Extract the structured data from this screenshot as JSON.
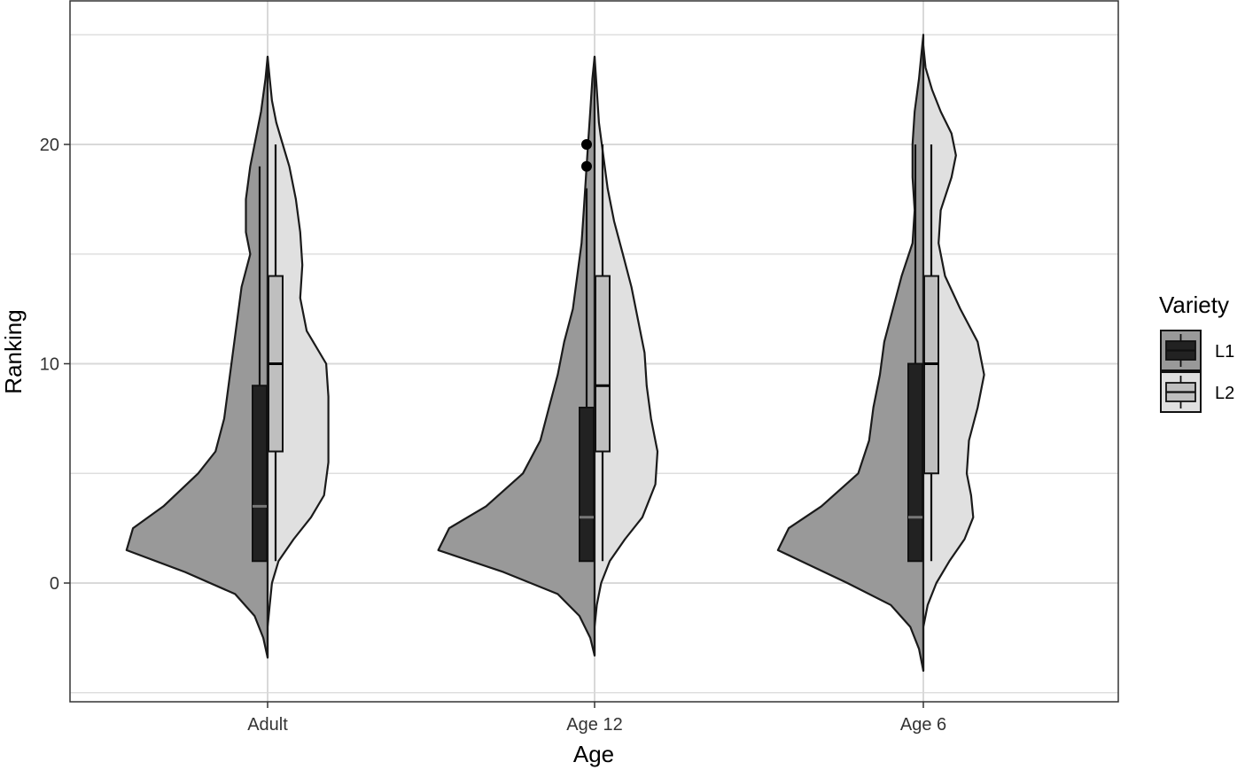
{
  "chart_data": {
    "type": "split-violin",
    "xlabel": "Age",
    "ylabel": "Ranking",
    "categories": [
      "Adult",
      "Age 12",
      "Age 6"
    ],
    "ylim": [
      -5,
      25
    ],
    "y_ticks": [
      0,
      10,
      20
    ],
    "grid": true,
    "legend": {
      "title": "Variety",
      "placement": "right",
      "entries": [
        {
          "name": "L1",
          "fill": "#999999",
          "box_fill": "#222222"
        },
        {
          "name": "L2",
          "fill": "#e0e0e0",
          "box_fill": "#bfbfbf"
        }
      ]
    },
    "colors": {
      "L1_violin": "#999999",
      "L1_box": "#222222",
      "L1_median": "#777777",
      "L2_violin": "#e0e0e0",
      "L2_box": "#bfbfbf",
      "L2_median": "#000000",
      "grid": "#d9d9d9",
      "outline": "#1a1a1a"
    },
    "series": [
      {
        "name": "L1",
        "side": "left",
        "groups": [
          {
            "category": "Adult",
            "box": {
              "min": 1,
              "q1": 1,
              "median": 3.5,
              "q3": 9,
              "max": 19
            },
            "outliers": [],
            "density": [
              [
                -3.4,
                0.0
              ],
              [
                -2.5,
                0.02
              ],
              [
                -1.5,
                0.06
              ],
              [
                -0.5,
                0.15
              ],
              [
                0.5,
                0.38
              ],
              [
                1.5,
                0.65
              ],
              [
                2.5,
                0.62
              ],
              [
                3.5,
                0.48
              ],
              [
                5.0,
                0.32
              ],
              [
                6.0,
                0.24
              ],
              [
                7.5,
                0.2
              ],
              [
                9.0,
                0.18
              ],
              [
                10.5,
                0.16
              ],
              [
                12.0,
                0.14
              ],
              [
                13.5,
                0.12
              ],
              [
                15.0,
                0.08
              ],
              [
                16.0,
                0.1
              ],
              [
                17.5,
                0.1
              ],
              [
                19.0,
                0.08
              ],
              [
                20.0,
                0.06
              ],
              [
                21.5,
                0.03
              ],
              [
                23.0,
                0.01
              ],
              [
                24.0,
                0.0
              ]
            ]
          },
          {
            "category": "Age 12",
            "box": {
              "min": 1,
              "q1": 1,
              "median": 3,
              "q3": 8,
              "max": 18
            },
            "outliers": [
              19,
              20
            ],
            "density": [
              [
                -3.3,
                0.0
              ],
              [
                -2.5,
                0.02
              ],
              [
                -1.5,
                0.07
              ],
              [
                -0.5,
                0.17
              ],
              [
                0.5,
                0.42
              ],
              [
                1.5,
                0.72
              ],
              [
                2.5,
                0.67
              ],
              [
                3.5,
                0.5
              ],
              [
                5.0,
                0.33
              ],
              [
                6.5,
                0.25
              ],
              [
                8.0,
                0.21
              ],
              [
                9.5,
                0.17
              ],
              [
                11.0,
                0.14
              ],
              [
                12.5,
                0.1
              ],
              [
                14.0,
                0.08
              ],
              [
                15.5,
                0.06
              ],
              [
                17.0,
                0.05
              ],
              [
                18.5,
                0.04
              ],
              [
                20.0,
                0.03
              ],
              [
                21.5,
                0.02
              ],
              [
                23.0,
                0.01
              ],
              [
                24.0,
                0.0
              ]
            ]
          },
          {
            "category": "Age 6",
            "box": {
              "min": 1,
              "q1": 1,
              "median": 3,
              "q3": 10,
              "max": 20
            },
            "outliers": [],
            "density": [
              [
                -4.0,
                0.0
              ],
              [
                -3.0,
                0.02
              ],
              [
                -2.0,
                0.06
              ],
              [
                -1.0,
                0.15
              ],
              [
                0.0,
                0.35
              ],
              [
                1.5,
                0.67
              ],
              [
                2.5,
                0.62
              ],
              [
                3.5,
                0.47
              ],
              [
                5.0,
                0.3
              ],
              [
                6.5,
                0.25
              ],
              [
                8.0,
                0.23
              ],
              [
                9.5,
                0.2
              ],
              [
                11.0,
                0.18
              ],
              [
                12.5,
                0.14
              ],
              [
                14.0,
                0.1
              ],
              [
                15.5,
                0.05
              ],
              [
                17.0,
                0.04
              ],
              [
                18.5,
                0.05
              ],
              [
                20.0,
                0.05
              ],
              [
                21.5,
                0.04
              ],
              [
                23.0,
                0.02
              ],
              [
                24.0,
                0.01
              ],
              [
                25.0,
                0.0
              ]
            ]
          }
        ]
      },
      {
        "name": "L2",
        "side": "right",
        "groups": [
          {
            "category": "Adult",
            "box": {
              "min": 1,
              "q1": 6,
              "median": 10,
              "q3": 14,
              "max": 20
            },
            "outliers": [],
            "density": [
              [
                -3.4,
                0.0
              ],
              [
                -2.0,
                0.0
              ],
              [
                -1.0,
                0.01
              ],
              [
                0.0,
                0.02
              ],
              [
                1.0,
                0.05
              ],
              [
                2.0,
                0.12
              ],
              [
                3.0,
                0.2
              ],
              [
                4.0,
                0.26
              ],
              [
                5.5,
                0.28
              ],
              [
                7.0,
                0.28
              ],
              [
                8.5,
                0.28
              ],
              [
                10.0,
                0.27
              ],
              [
                11.5,
                0.18
              ],
              [
                13.0,
                0.15
              ],
              [
                14.5,
                0.16
              ],
              [
                16.0,
                0.15
              ],
              [
                17.5,
                0.13
              ],
              [
                19.0,
                0.1
              ],
              [
                20.0,
                0.07
              ],
              [
                21.0,
                0.04
              ],
              [
                22.0,
                0.02
              ],
              [
                23.0,
                0.01
              ],
              [
                24.0,
                0.0
              ]
            ]
          },
          {
            "category": "Age 12",
            "box": {
              "min": 1,
              "q1": 6,
              "median": 9,
              "q3": 14,
              "max": 20
            },
            "outliers": [],
            "density": [
              [
                -3.3,
                0.0
              ],
              [
                -2.0,
                0.0
              ],
              [
                -1.0,
                0.01
              ],
              [
                0.0,
                0.03
              ],
              [
                1.0,
                0.07
              ],
              [
                2.0,
                0.14
              ],
              [
                3.0,
                0.22
              ],
              [
                4.5,
                0.28
              ],
              [
                6.0,
                0.29
              ],
              [
                7.5,
                0.26
              ],
              [
                9.0,
                0.24
              ],
              [
                10.5,
                0.23
              ],
              [
                12.0,
                0.2
              ],
              [
                13.5,
                0.17
              ],
              [
                15.0,
                0.13
              ],
              [
                16.5,
                0.09
              ],
              [
                18.0,
                0.06
              ],
              [
                19.5,
                0.04
              ],
              [
                21.0,
                0.02
              ],
              [
                22.5,
                0.01
              ],
              [
                24.0,
                0.0
              ]
            ]
          },
          {
            "category": "Age 6",
            "box": {
              "min": 1,
              "q1": 5,
              "median": 10,
              "q3": 14,
              "max": 20
            },
            "outliers": [],
            "density": [
              [
                -4.0,
                0.0
              ],
              [
                -3.0,
                0.0
              ],
              [
                -2.0,
                0.0
              ],
              [
                -1.0,
                0.02
              ],
              [
                0.0,
                0.06
              ],
              [
                1.0,
                0.12
              ],
              [
                2.0,
                0.19
              ],
              [
                3.0,
                0.23
              ],
              [
                4.0,
                0.22
              ],
              [
                5.0,
                0.2
              ],
              [
                6.5,
                0.21
              ],
              [
                8.0,
                0.25
              ],
              [
                9.5,
                0.28
              ],
              [
                11.0,
                0.25
              ],
              [
                12.5,
                0.17
              ],
              [
                14.0,
                0.1
              ],
              [
                15.5,
                0.07
              ],
              [
                17.0,
                0.08
              ],
              [
                18.5,
                0.13
              ],
              [
                19.5,
                0.15
              ],
              [
                20.5,
                0.13
              ],
              [
                21.5,
                0.08
              ],
              [
                22.5,
                0.04
              ],
              [
                23.5,
                0.01
              ],
              [
                24.5,
                0.0
              ]
            ]
          }
        ]
      }
    ]
  }
}
